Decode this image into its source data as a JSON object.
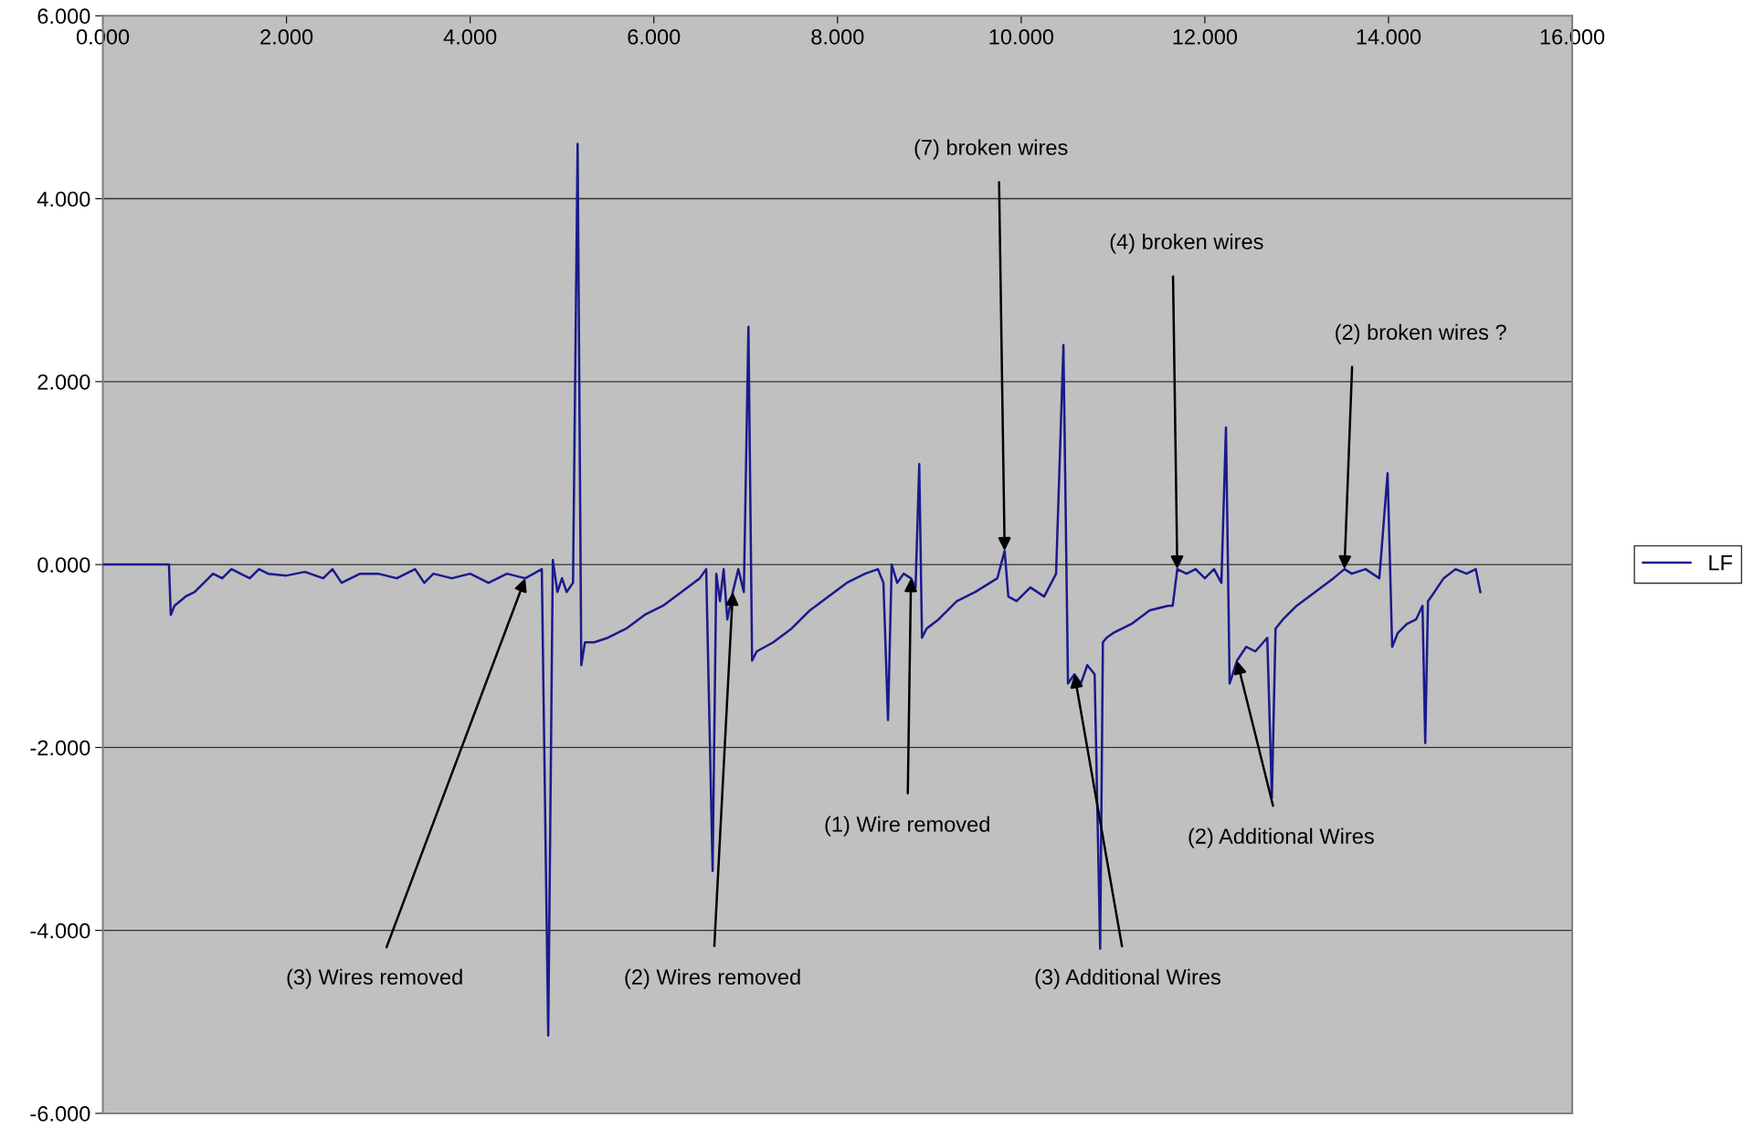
{
  "chart_data": {
    "type": "line",
    "legend": "right",
    "grid": "y",
    "marker": "none",
    "line_style": "solid",
    "xlim": [
      0,
      16
    ],
    "xticks": [
      {
        "value": 0,
        "label": "0.000"
      },
      {
        "value": 2,
        "label": "2.000"
      },
      {
        "value": 4,
        "label": "4.000"
      },
      {
        "value": 6,
        "label": "6.000"
      },
      {
        "value": 8,
        "label": "8.000"
      },
      {
        "value": 10,
        "label": "10.000"
      },
      {
        "value": 12,
        "label": "12.000"
      },
      {
        "value": 14,
        "label": "14.000"
      },
      {
        "value": 16,
        "label": "16.000"
      }
    ],
    "ylim": [
      -6,
      6
    ],
    "yticks": [
      {
        "value": -6,
        "label": "-6.000"
      },
      {
        "value": -4,
        "label": "-4.000"
      },
      {
        "value": -2,
        "label": "-2.000"
      },
      {
        "value": 0,
        "label": "0.000"
      },
      {
        "value": 2,
        "label": "2.000"
      },
      {
        "value": 4,
        "label": "4.000"
      },
      {
        "value": 6,
        "label": "6.000"
      }
    ],
    "series": [
      {
        "name": "LF",
        "color": "#1a1a8c",
        "x": [
          0,
          0.72,
          0.74,
          0.78,
          0.9,
          1.0,
          1.1,
          1.2,
          1.3,
          1.4,
          1.5,
          1.6,
          1.7,
          1.8,
          2.0,
          2.2,
          2.4,
          2.5,
          2.6,
          2.8,
          3.0,
          3.2,
          3.4,
          3.5,
          3.6,
          3.8,
          4.0,
          4.2,
          4.4,
          4.6,
          4.78,
          4.85,
          4.9,
          4.95,
          5.0,
          5.05,
          5.12,
          5.17,
          5.21,
          5.25,
          5.35,
          5.5,
          5.7,
          5.9,
          6.1,
          6.3,
          6.5,
          6.57,
          6.64,
          6.68,
          6.72,
          6.76,
          6.8,
          6.86,
          6.92,
          6.98,
          7.03,
          7.07,
          7.12,
          7.3,
          7.5,
          7.7,
          7.9,
          8.1,
          8.3,
          8.44,
          8.5,
          8.55,
          8.59,
          8.65,
          8.72,
          8.8,
          8.85,
          8.89,
          8.92,
          8.97,
          9.1,
          9.3,
          9.5,
          9.74,
          9.82,
          9.86,
          9.95,
          10.1,
          10.25,
          10.38,
          10.46,
          10.51,
          10.58,
          10.65,
          10.72,
          10.8,
          10.86,
          10.89,
          10.93,
          11.0,
          11.2,
          11.4,
          11.6,
          11.65,
          11.7,
          11.8,
          11.9,
          12.0,
          12.1,
          12.18,
          12.23,
          12.27,
          12.35,
          12.45,
          12.55,
          12.68,
          12.73,
          12.77,
          12.85,
          13.0,
          13.2,
          13.4,
          13.52,
          13.6,
          13.75,
          13.9,
          13.99,
          14.04,
          14.1,
          14.2,
          14.3,
          14.37,
          14.4,
          14.43,
          14.5,
          14.6,
          14.73,
          14.85,
          14.95,
          15.0
        ],
        "values": [
          0,
          0,
          -0.55,
          -0.45,
          -0.35,
          -0.3,
          -0.2,
          -0.1,
          -0.15,
          -0.05,
          -0.1,
          -0.15,
          -0.05,
          -0.1,
          -0.12,
          -0.08,
          -0.15,
          -0.05,
          -0.2,
          -0.1,
          -0.1,
          -0.15,
          -0.05,
          -0.2,
          -0.1,
          -0.15,
          -0.1,
          -0.2,
          -0.1,
          -0.15,
          -0.05,
          -5.15,
          0.05,
          -0.3,
          -0.15,
          -0.3,
          -0.2,
          4.6,
          -1.1,
          -0.85,
          -0.85,
          -0.8,
          -0.7,
          -0.55,
          -0.45,
          -0.3,
          -0.15,
          -0.05,
          -3.35,
          -0.1,
          -0.4,
          -0.05,
          -0.6,
          -0.3,
          -0.05,
          -0.3,
          2.6,
          -1.05,
          -0.95,
          -0.85,
          -0.7,
          -0.5,
          -0.35,
          -0.2,
          -0.1,
          -0.05,
          -0.2,
          -1.7,
          0.0,
          -0.2,
          -0.1,
          -0.15,
          -0.25,
          1.1,
          -0.8,
          -0.7,
          -0.6,
          -0.4,
          -0.3,
          -0.15,
          0.15,
          -0.35,
          -0.4,
          -0.25,
          -0.35,
          -0.1,
          2.4,
          -1.3,
          -1.2,
          -1.3,
          -1.1,
          -1.2,
          -4.2,
          -0.85,
          -0.8,
          -0.75,
          -0.65,
          -0.5,
          -0.45,
          -0.45,
          -0.05,
          -0.1,
          -0.05,
          -0.15,
          -0.05,
          -0.2,
          1.5,
          -1.3,
          -1.05,
          -0.9,
          -0.95,
          -0.8,
          -2.55,
          -0.7,
          -0.6,
          -0.45,
          -0.3,
          -0.15,
          -0.05,
          -0.1,
          -0.05,
          -0.15,
          1.0,
          -0.9,
          -0.75,
          -0.65,
          -0.6,
          -0.45,
          -1.95,
          -0.4,
          -0.3,
          -0.15,
          -0.05,
          -0.1,
          -0.05,
          -0.3
        ]
      }
    ],
    "annotations": [
      {
        "text": "(3) Wires removed",
        "x": 4.6,
        "y": -0.15
      },
      {
        "text": "(2) Wires removed",
        "x": 6.86,
        "y": -0.3
      },
      {
        "text": "(1) Wire removed",
        "x": 8.8,
        "y": -0.15
      },
      {
        "text": "(3) Additional Wires",
        "x": 10.58,
        "y": -1.2
      },
      {
        "text": "(2) Additional Wires",
        "x": 12.35,
        "y": -1.05
      },
      {
        "text": "(7) broken wires",
        "x": 9.82,
        "y": 0.15
      },
      {
        "text": "(4) broken wires",
        "x": 11.7,
        "y": -0.05
      },
      {
        "text": "(2) broken wires ?",
        "x": 13.52,
        "y": -0.05
      }
    ]
  }
}
